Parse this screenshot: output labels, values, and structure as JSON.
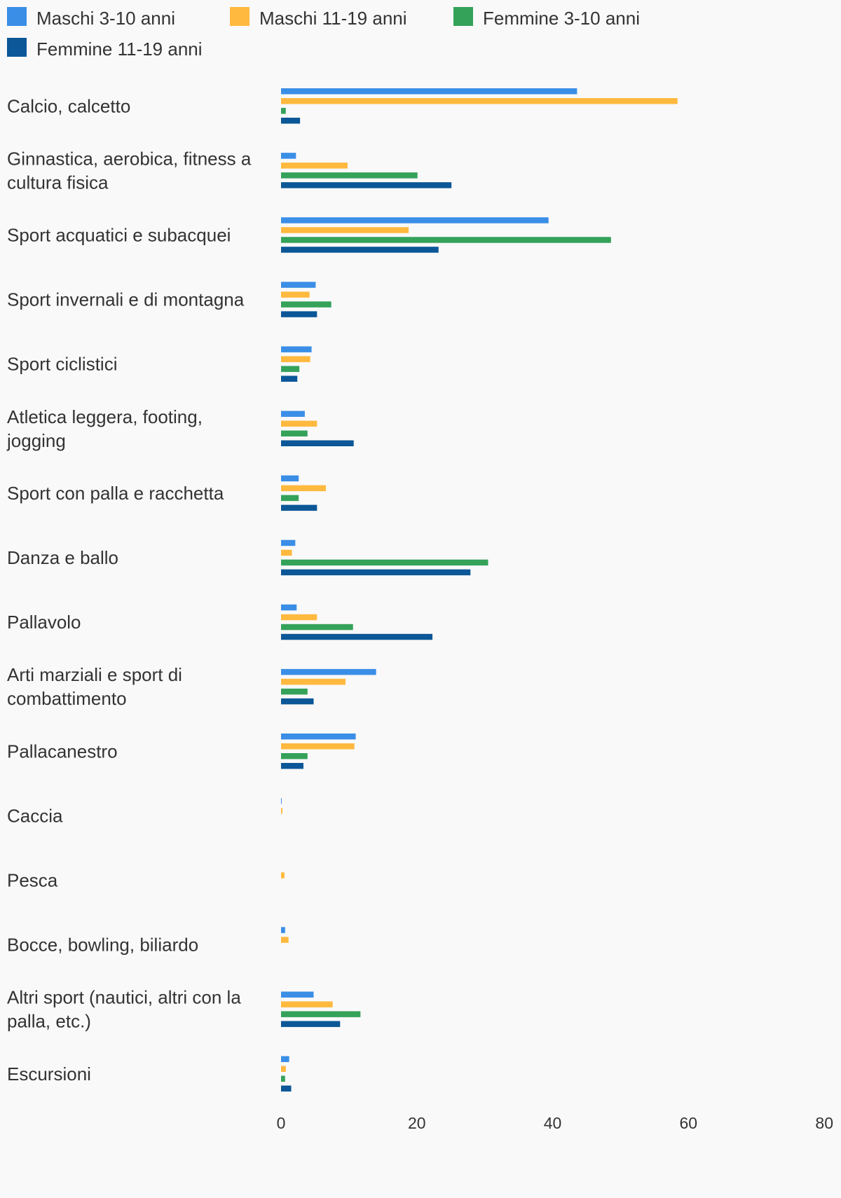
{
  "chart_data": {
    "type": "bar",
    "orientation": "horizontal",
    "categories": [
      [
        "Calcio, calcetto"
      ],
      [
        "Ginnastica, aerobica, fitness a",
        "cultura fisica"
      ],
      [
        "Sport acquatici e subacquei"
      ],
      [
        "Sport invernali e di montagna"
      ],
      [
        "Sport ciclistici"
      ],
      [
        "Atletica leggera, footing,",
        "jogging"
      ],
      [
        "Sport con palla e racchetta"
      ],
      [
        "Danza e ballo"
      ],
      [
        "Pallavolo"
      ],
      [
        "Arti marziali e sport di",
        "combattimento"
      ],
      [
        "Pallacanestro"
      ],
      [
        "Caccia"
      ],
      [
        "Pesca"
      ],
      [
        "Bocce, bowling, biliardo"
      ],
      [
        "Altri sport (nautici, altri con la",
        "palla, etc.)"
      ],
      [
        "Escursioni"
      ]
    ],
    "series": [
      {
        "name": "Maschi 3-10 anni",
        "color": "#3a8ee6",
        "values": [
          43.6,
          2.2,
          39.4,
          5.1,
          4.5,
          3.5,
          2.6,
          2.1,
          2.3,
          14.0,
          11.0,
          0.1,
          0.0,
          0.6,
          4.8,
          1.2
        ]
      },
      {
        "name": "Maschi 11-19 anni",
        "color": "#ffb93e",
        "values": [
          58.4,
          9.8,
          18.8,
          4.2,
          4.3,
          5.3,
          6.6,
          1.6,
          5.3,
          9.5,
          10.8,
          0.2,
          0.5,
          1.1,
          7.6,
          0.7
        ]
      },
      {
        "name": "Femmine 3-10 anni",
        "color": "#35a25a",
        "values": [
          0.7,
          20.1,
          48.6,
          7.4,
          2.7,
          3.9,
          2.6,
          30.5,
          10.6,
          3.9,
          3.9,
          0.0,
          0.0,
          0.0,
          11.7,
          0.6
        ]
      },
      {
        "name": "Femmine 11-19 anni",
        "color": "#0b5797",
        "values": [
          2.8,
          25.1,
          23.2,
          5.3,
          2.4,
          10.7,
          5.3,
          27.9,
          22.3,
          4.8,
          3.3,
          0.0,
          0.0,
          0.0,
          8.7,
          1.5
        ]
      }
    ],
    "xlim": [
      0,
      80
    ],
    "xticks": [
      "0",
      "20",
      "40",
      "60",
      "80"
    ],
    "legend_position": "top",
    "grid": false
  }
}
